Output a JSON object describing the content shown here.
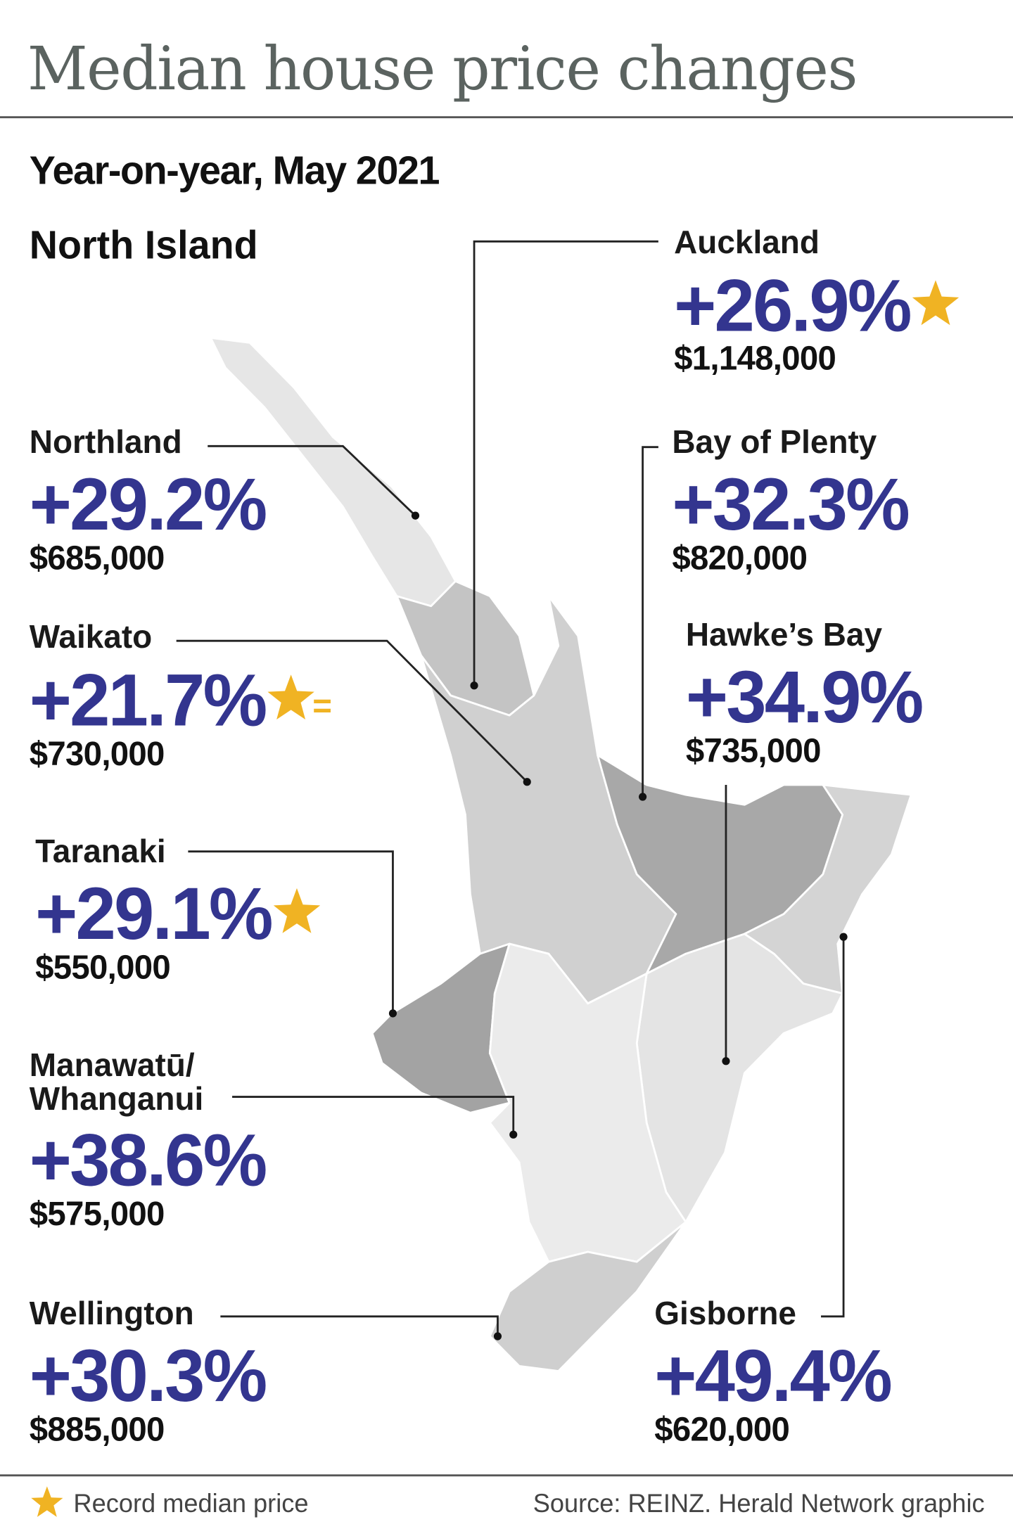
{
  "title": "Median house price changes",
  "subtitle": "Year-on-year, May 2021",
  "island": "North Island",
  "regions": [
    {
      "name": [
        "Auckland"
      ],
      "change": "+26.9%",
      "price": "$1,148,000",
      "record": true
    },
    {
      "name": [
        "Northland"
      ],
      "change": "+29.2%",
      "price": "$685,000",
      "record": false
    },
    {
      "name": [
        "Bay of Plenty"
      ],
      "change": "+32.3%",
      "price": "$820,000",
      "record": false
    },
    {
      "name": [
        "Waikato"
      ],
      "change": "+21.7%",
      "price": "$730,000",
      "record": true,
      "record_note": "="
    },
    {
      "name": [
        "Hawke’s Bay"
      ],
      "change": "+34.9%",
      "price": "$735,000",
      "record": false
    },
    {
      "name": [
        "Taranaki"
      ],
      "change": "+29.1%",
      "price": "$550,000",
      "record": true
    },
    {
      "name": [
        "Manawatū/",
        "Whanganui"
      ],
      "change": "+38.6%",
      "price": "$575,000",
      "record": false
    },
    {
      "name": [
        "Wellington"
      ],
      "change": "+30.3%",
      "price": "$885,000",
      "record": false
    },
    {
      "name": [
        "Gisborne"
      ],
      "change": "+49.4%",
      "price": "$620,000",
      "record": false
    }
  ],
  "legend": "Record median price",
  "source": "Source: REINZ.  Herald Network graphic"
}
